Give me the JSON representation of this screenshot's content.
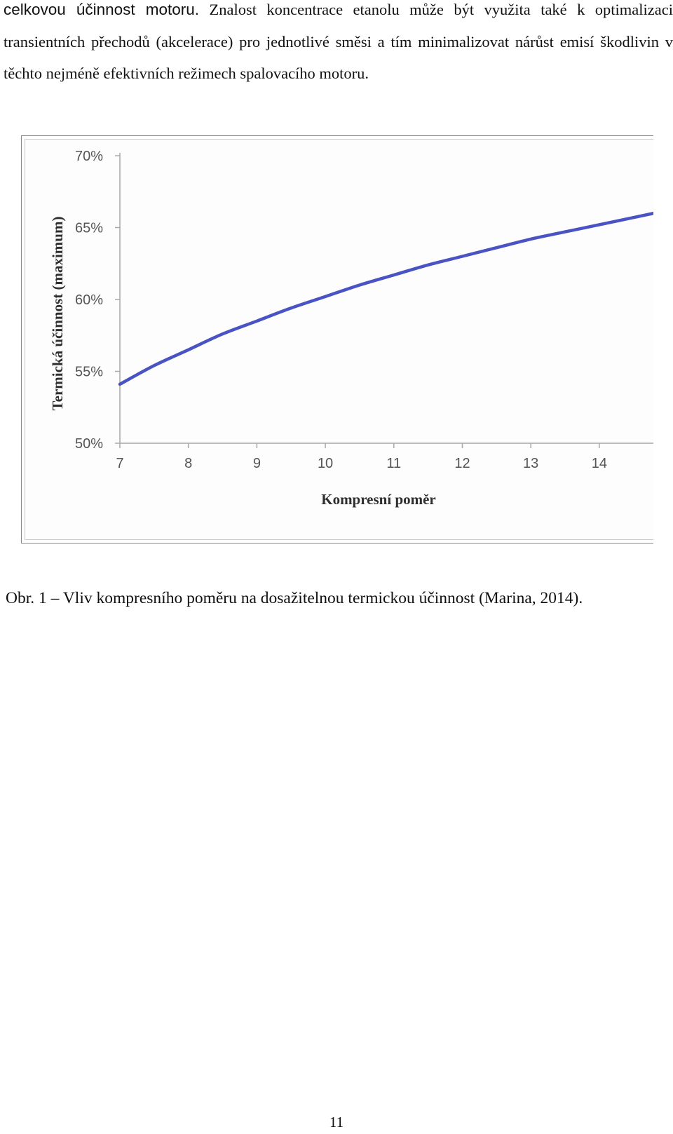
{
  "paragraph": {
    "lead": "celkovou účinnost motoru.",
    "text": "Znalost koncentrace etanolu může být využita také k optimalizaci transientních přechodů (akcelerace) pro jednotlivé směsi a tím minimalizovat nárůst emisí škodlivin v těchto nejméně efektivních režimech spalovacího motoru."
  },
  "caption": "Obr. 1 – Vliv kompresního poměru na dosažitelnou termickou účinnost (Marina, 2014).",
  "page_number": "11",
  "chart_data": {
    "type": "line",
    "xlabel": "Kompresní poměr",
    "ylabel": "Termická účinnost (maximum)",
    "x_ticks": [
      "7",
      "8",
      "9",
      "10",
      "11",
      "12",
      "13",
      "14"
    ],
    "y_ticks": [
      "50%",
      "55%",
      "60%",
      "65%",
      "70%"
    ],
    "xlim": [
      7,
      14.8
    ],
    "ylim": [
      50,
      70
    ],
    "grid": false,
    "line_color": "#4a53c4",
    "series": [
      {
        "x": [
          7,
          7.5,
          8,
          8.5,
          9,
          9.5,
          10,
          10.5,
          11,
          11.5,
          12,
          12.5,
          13,
          13.5,
          14,
          14.8
        ],
        "values": [
          54.1,
          55.4,
          56.5,
          57.6,
          58.5,
          59.4,
          60.2,
          61.0,
          61.7,
          62.4,
          63.0,
          63.6,
          64.2,
          64.7,
          65.2,
          66.0
        ]
      }
    ]
  }
}
